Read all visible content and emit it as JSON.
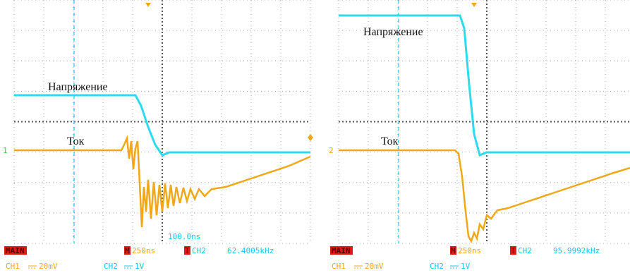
{
  "panels": [
    {
      "labels": {
        "voltage": "Напряжение",
        "current": "Ток"
      },
      "marker": "1",
      "cursor": "100.0ns",
      "status": {
        "mode": "MAIN",
        "timebase_prefix": "M",
        "timebase": "250ns",
        "trigger_prefix": "T",
        "trigger_source": "CH2",
        "frequency": "62.4005kHz",
        "ch1": "CH1",
        "ch1_scale": "20mV",
        "ch2": "CH2",
        "ch2_scale": "1V"
      }
    },
    {
      "labels": {
        "voltage": "Напряжение",
        "current": "Ток"
      },
      "marker": "2",
      "status": {
        "mode": "MAIN",
        "timebase_prefix": "M",
        "timebase": "250ns",
        "trigger_prefix": "T",
        "trigger_source": "CH2",
        "frequency": "95.9992kHz",
        "ch1": "CH1",
        "ch1_scale": "20mV",
        "ch2": "CH2",
        "ch2_scale": "1V"
      }
    }
  ]
}
